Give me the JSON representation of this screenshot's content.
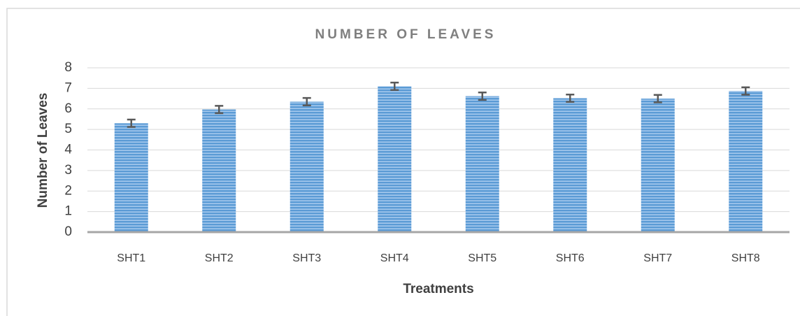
{
  "chart_data": {
    "type": "bar",
    "title": "NUMBER OF LEAVES",
    "x_label": "Treatments",
    "y_label": "Number of Leaves",
    "categories": [
      "SHT1",
      "SHT2",
      "SHT3",
      "SHT4",
      "SHT5",
      "SHT6",
      "SHT7",
      "SHT8"
    ],
    "values": [
      5.3,
      5.97,
      6.35,
      7.1,
      6.62,
      6.52,
      6.5,
      6.87
    ],
    "errors": [
      0.18,
      0.18,
      0.18,
      0.18,
      0.18,
      0.18,
      0.18,
      0.18
    ],
    "color": "#5b9bd5",
    "ylim": [
      0,
      8
    ],
    "yticks": [
      0,
      1,
      2,
      3,
      4,
      5,
      6,
      7,
      8
    ],
    "grid": true
  }
}
